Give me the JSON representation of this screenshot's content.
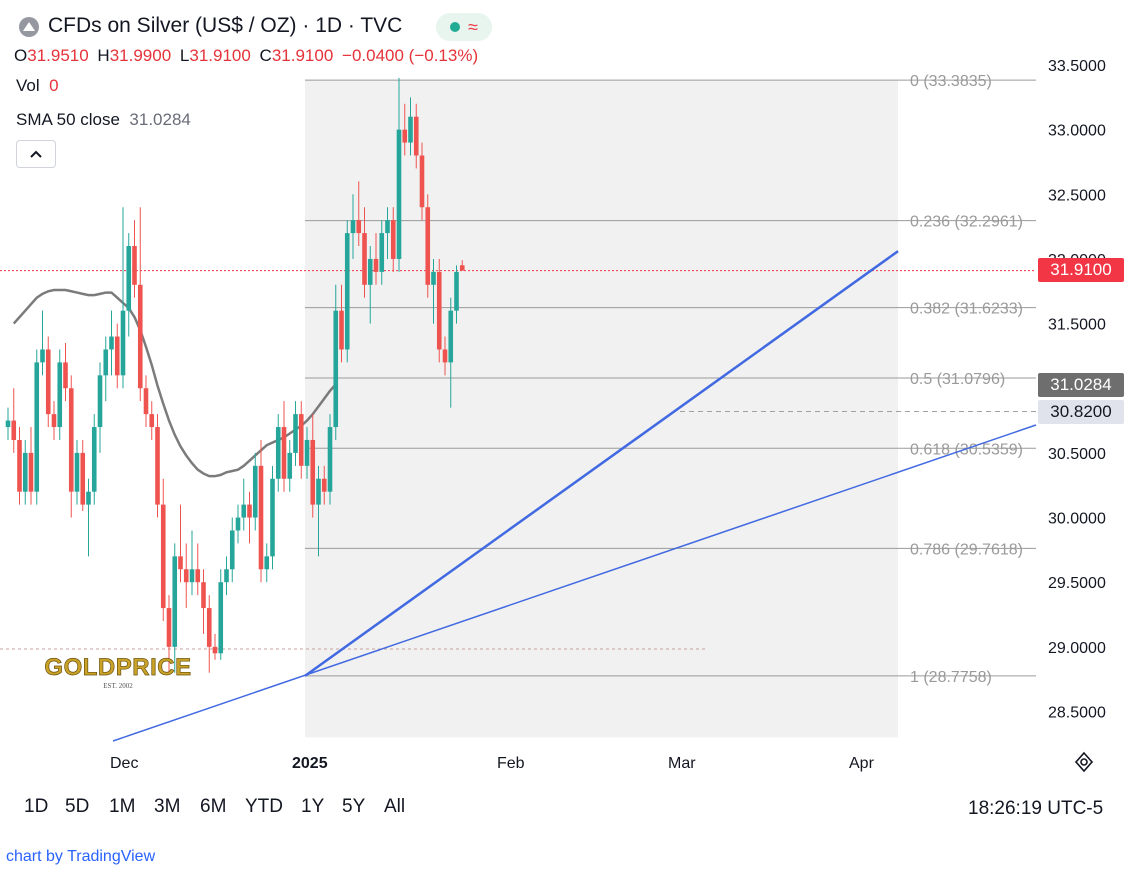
{
  "header": {
    "title": "CFDs on Silver (US$ / OZ) · 1D · TVC",
    "ohlc": [
      {
        "key": "O",
        "value": "31.9510"
      },
      {
        "key": "H",
        "value": "31.9900"
      },
      {
        "key": "L",
        "value": "31.9100"
      },
      {
        "key": "C",
        "value": "31.9100"
      }
    ],
    "change": "−0.0400 (−0.13%)",
    "vol_label": "Vol",
    "vol_value": "0",
    "sma_label": "SMA 50 close",
    "sma_value": "31.0284"
  },
  "price_tags": {
    "last": "31.9100",
    "sma": "31.0284",
    "low_marker": "30.8200"
  },
  "timeframes": [
    "1D",
    "5D",
    "1M",
    "3M",
    "6M",
    "YTD",
    "1Y",
    "5Y",
    "All"
  ],
  "clock": "18:26:19 UTC-5",
  "attribution": "chart by TradingView",
  "logo": {
    "main": "GOLDPRICE",
    "sub": "EST. 2002"
  },
  "colors": {
    "up": "#26a69a",
    "down": "#ef5350",
    "sma": "#7b7b7b",
    "trendline": "#4169e1",
    "fib_zone": "#f1f1f1",
    "last_price": "#f23645",
    "sma_tag": "#6e6e6e",
    "low_tag": "#e0e3eb"
  },
  "chart_data": {
    "type": "candlestick",
    "ylim": [
      28.3,
      33.55
    ],
    "y_ticks": [
      "33.5000",
      "33.0000",
      "32.5000",
      "32.0000",
      "31.5000",
      "31.0000",
      "30.5000",
      "30.0000",
      "29.5000",
      "29.0000",
      "28.5000"
    ],
    "x_labels": [
      "Dec",
      "2025",
      "Feb",
      "Mar",
      "Apr"
    ],
    "last_price": 31.91,
    "sma50_last": 31.0284,
    "fibonacci": [
      {
        "label": "0 (33.3835)",
        "value": 33.3835
      },
      {
        "label": "0.236 (32.2961)",
        "value": 32.2961
      },
      {
        "label": "0.382 (31.6233)",
        "value": 31.6233
      },
      {
        "label": "0.5 (31.0796)",
        "value": 31.0796
      },
      {
        "label": "0.618 (30.5359)",
        "value": 30.5359
      },
      {
        "label": "0.786 (29.7618)",
        "value": 29.7618
      },
      {
        "label": "1 (28.7758)",
        "value": 28.7758
      }
    ],
    "candles": [
      [
        30.7,
        30.85,
        30.6,
        30.75
      ],
      [
        30.75,
        31.0,
        30.5,
        30.6
      ],
      [
        30.6,
        30.7,
        30.1,
        30.2
      ],
      [
        30.2,
        30.6,
        30.1,
        30.5
      ],
      [
        30.5,
        30.7,
        30.1,
        30.2
      ],
      [
        30.2,
        31.3,
        30.1,
        31.2
      ],
      [
        31.2,
        31.6,
        31.1,
        31.3
      ],
      [
        31.3,
        31.4,
        30.7,
        30.8
      ],
      [
        30.8,
        30.9,
        30.6,
        30.7
      ],
      [
        30.7,
        31.3,
        30.6,
        31.2
      ],
      [
        31.2,
        31.35,
        30.9,
        31.0
      ],
      [
        31.0,
        31.1,
        30.0,
        30.2
      ],
      [
        30.2,
        30.6,
        30.1,
        30.5
      ],
      [
        30.5,
        30.6,
        30.05,
        30.1
      ],
      [
        30.1,
        30.3,
        29.7,
        30.2
      ],
      [
        30.2,
        30.8,
        30.1,
        30.7
      ],
      [
        30.7,
        31.2,
        30.5,
        31.1
      ],
      [
        31.1,
        31.4,
        30.9,
        31.3
      ],
      [
        31.3,
        31.6,
        31.1,
        31.4
      ],
      [
        31.4,
        31.5,
        31.0,
        31.1
      ],
      [
        31.1,
        32.4,
        31.0,
        31.6
      ],
      [
        31.6,
        32.2,
        31.4,
        32.1
      ],
      [
        32.1,
        32.3,
        31.7,
        31.8
      ],
      [
        31.8,
        32.4,
        30.9,
        31.0
      ],
      [
        31.0,
        31.1,
        30.7,
        30.8
      ],
      [
        30.8,
        30.9,
        30.6,
        30.7
      ],
      [
        30.7,
        30.8,
        30.0,
        30.1
      ],
      [
        30.1,
        30.3,
        29.2,
        29.3
      ],
      [
        29.3,
        29.4,
        28.8,
        29.0
      ],
      [
        29.0,
        29.8,
        28.8,
        29.7
      ],
      [
        29.7,
        30.1,
        29.5,
        29.6
      ],
      [
        29.6,
        29.8,
        29.3,
        29.5
      ],
      [
        29.5,
        29.9,
        29.4,
        29.6
      ],
      [
        29.6,
        29.8,
        29.4,
        29.5
      ],
      [
        29.5,
        29.6,
        29.1,
        29.3
      ],
      [
        29.3,
        29.4,
        28.8,
        29.0
      ],
      [
        29.0,
        29.1,
        28.9,
        28.95
      ],
      [
        28.95,
        29.6,
        28.9,
        29.5
      ],
      [
        29.5,
        29.7,
        29.4,
        29.6
      ],
      [
        29.6,
        30.0,
        29.5,
        29.9
      ],
      [
        29.9,
        30.1,
        29.8,
        30.0
      ],
      [
        30.0,
        30.3,
        29.9,
        30.1
      ],
      [
        30.1,
        30.2,
        29.8,
        30.0
      ],
      [
        30.0,
        30.5,
        29.9,
        30.4
      ],
      [
        30.4,
        30.6,
        29.5,
        29.6
      ],
      [
        29.6,
        29.8,
        29.5,
        29.7
      ],
      [
        29.7,
        30.4,
        29.6,
        30.3
      ],
      [
        30.3,
        30.8,
        30.2,
        30.7
      ],
      [
        30.7,
        30.9,
        30.2,
        30.3
      ],
      [
        30.3,
        30.6,
        30.2,
        30.5
      ],
      [
        30.5,
        30.9,
        30.4,
        30.8
      ],
      [
        30.8,
        30.9,
        30.3,
        30.4
      ],
      [
        30.4,
        30.7,
        30.3,
        30.6
      ],
      [
        30.6,
        30.8,
        30.0,
        30.1
      ],
      [
        30.1,
        30.4,
        29.7,
        30.3
      ],
      [
        30.3,
        30.4,
        30.1,
        30.2
      ],
      [
        30.2,
        30.8,
        30.1,
        30.7
      ],
      [
        30.7,
        31.8,
        30.6,
        31.6
      ],
      [
        31.6,
        31.8,
        31.2,
        31.3
      ],
      [
        31.3,
        32.3,
        31.2,
        32.2
      ],
      [
        32.2,
        32.5,
        32.0,
        32.3
      ],
      [
        32.3,
        32.6,
        32.1,
        32.2
      ],
      [
        32.2,
        32.4,
        31.7,
        31.8
      ],
      [
        31.8,
        32.1,
        31.5,
        32.0
      ],
      [
        32.0,
        32.2,
        31.8,
        31.9
      ],
      [
        31.9,
        32.3,
        31.8,
        32.2
      ],
      [
        32.2,
        32.4,
        32.0,
        32.3
      ],
      [
        32.3,
        32.4,
        31.9,
        32.0
      ],
      [
        32.0,
        33.4,
        31.9,
        33.0
      ],
      [
        33.0,
        33.2,
        32.8,
        32.9
      ],
      [
        32.9,
        33.25,
        32.8,
        33.1
      ],
      [
        33.1,
        33.2,
        32.7,
        32.8
      ],
      [
        32.8,
        32.9,
        32.3,
        32.4
      ],
      [
        32.4,
        32.5,
        31.7,
        31.8
      ],
      [
        31.8,
        32.0,
        31.5,
        31.9
      ],
      [
        31.9,
        32.0,
        31.2,
        31.3
      ],
      [
        31.3,
        31.4,
        31.1,
        31.2
      ],
      [
        31.2,
        31.7,
        30.85,
        31.6
      ],
      [
        31.6,
        31.95,
        31.5,
        31.9
      ],
      [
        31.951,
        31.99,
        31.91,
        31.91
      ]
    ],
    "sma50": [
      31.5,
      31.55,
      31.6,
      31.65,
      31.7,
      31.73,
      31.75,
      31.76,
      31.76,
      31.76,
      31.75,
      31.74,
      31.73,
      31.72,
      31.72,
      31.73,
      31.74,
      31.74,
      31.7,
      31.66,
      31.62,
      31.55,
      31.45,
      31.32,
      31.18,
      31.02,
      30.88,
      30.75,
      30.64,
      30.55,
      30.48,
      30.42,
      30.37,
      30.34,
      30.32,
      30.32,
      30.33,
      30.35,
      30.36,
      30.37,
      30.4,
      30.44,
      30.48,
      30.52,
      30.56,
      30.58,
      30.6,
      30.62,
      30.65,
      30.68,
      30.71,
      30.75,
      30.8,
      30.86,
      30.92,
      30.98,
      31.03
    ]
  }
}
